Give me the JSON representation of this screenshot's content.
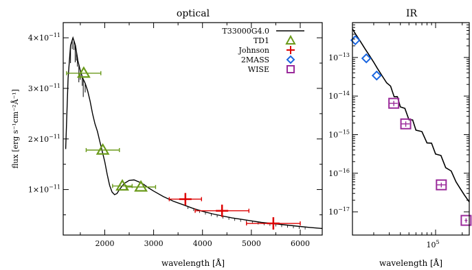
{
  "chart_data": [
    {
      "type": "scatter",
      "title": "optical",
      "xlabel": "wavelength [Å]",
      "ylabel": "flux [erg s⁻¹cm⁻²Å⁻¹]",
      "xlim": [
        1150,
        6450
      ],
      "ylim": [
        1e-12,
        4.3e-11
      ],
      "y_scale": "linear",
      "grid": false,
      "legend_position": "top-right",
      "x_ticks": [
        2000,
        3000,
        4000,
        5000,
        6000
      ],
      "x_tick_labels": [
        "2000",
        "3000",
        "4000",
        "5000",
        "6000"
      ],
      "y_ticks": [
        1e-11,
        2e-11,
        3e-11,
        4e-11
      ],
      "y_tick_labels": [
        {
          "base": "1×10",
          "exp": "−11"
        },
        {
          "base": "2×10",
          "exp": "−11"
        },
        {
          "base": "3×10",
          "exp": "−11"
        },
        {
          "base": "4×10",
          "exp": "−11"
        }
      ],
      "model": {
        "name": "T33000G4.0",
        "color": "#000000",
        "x": [
          1200,
          1250,
          1300,
          1350,
          1400,
          1450,
          1500,
          1550,
          1600,
          1650,
          1700,
          1750,
          1800,
          1850,
          1900,
          1950,
          2000,
          2050,
          2100,
          2150,
          2200,
          2250,
          2300,
          2400,
          2500,
          2600,
          2700,
          2800,
          2900,
          3000,
          3200,
          3400,
          3600,
          3800,
          4000,
          4200,
          4400,
          4600,
          4800,
          5000,
          5200,
          5400,
          5600,
          5800,
          6000,
          6200,
          6450
        ],
        "y": [
          1.8e-11,
          3.2e-11,
          3.85e-11,
          4e-11,
          3.85e-11,
          3.55e-11,
          3.35e-11,
          3.2e-11,
          3.1e-11,
          2.95e-11,
          2.75e-11,
          2.5e-11,
          2.3e-11,
          2.15e-11,
          1.95e-11,
          1.75e-11,
          1.55e-11,
          1.3e-11,
          1.08e-11,
          9.5e-12,
          9e-12,
          9.2e-12,
          1e-11,
          1.12e-11,
          1.18e-11,
          1.19e-11,
          1.15e-11,
          1.1e-11,
          1.03e-11,
          9.7e-12,
          8.6e-12,
          7.7e-12,
          7e-12,
          6.3e-12,
          5.7e-12,
          5.2e-12,
          4.8e-12,
          4.4e-12,
          4.1e-12,
          3.8e-12,
          3.5e-12,
          3.3e-12,
          3.1e-12,
          2.9e-12,
          2.7e-12,
          2.5e-12,
          2.3e-12
        ]
      },
      "series": [
        {
          "name": "TD1",
          "marker": "triangle",
          "color": "#6a9a1a",
          "points": [
            {
              "x": 1570,
              "y": 3.3e-11,
              "xerr": 350
            },
            {
              "x": 1960,
              "y": 1.78e-11,
              "xerr": 340
            },
            {
              "x": 2360,
              "y": 1.07e-11,
              "xerr": 200
            },
            {
              "x": 2740,
              "y": 1.05e-11,
              "xerr": 300
            }
          ]
        },
        {
          "name": "Johnson",
          "marker": "plus",
          "color": "#dd0000",
          "points": [
            {
              "x": 3650,
              "y": 8.1e-12,
              "xerr": 330,
              "yerr": 6e-13
            },
            {
              "x": 4400,
              "y": 5.8e-12,
              "xerr": 550,
              "yerr": 7e-13
            },
            {
              "x": 5450,
              "y": 3.3e-12,
              "xerr": 550,
              "yerr": 5e-13
            }
          ]
        }
      ]
    },
    {
      "type": "scatter",
      "title": "IR",
      "xlabel": "wavelength [Å]",
      "ylabel": "",
      "xlim": [
        11500,
        240000
      ],
      "ylim": [
        2.5e-18,
        8e-13
      ],
      "x_scale": "log",
      "y_scale": "log",
      "grid": false,
      "x_ticks": [
        100000
      ],
      "x_tick_labels": [
        {
          "base": "10",
          "exp": "5"
        }
      ],
      "y_ticks": [
        1e-17,
        1e-16,
        1e-15,
        1e-14,
        1e-13
      ],
      "y_tick_labels": [
        {
          "base": "10",
          "exp": "−17"
        },
        {
          "base": "10",
          "exp": "−16"
        },
        {
          "base": "10",
          "exp": "−15"
        },
        {
          "base": "10",
          "exp": "−14"
        },
        {
          "base": "10",
          "exp": "−13"
        }
      ],
      "model": {
        "name": "T33000G4.0",
        "color": "#000000",
        "x": [
          11500,
          12500,
          14000,
          16000,
          18000,
          20000,
          22000,
          25000,
          28000,
          31000,
          34000,
          37000,
          40000,
          45000,
          50000,
          55000,
          60000,
          70000,
          80000,
          90000,
          100000,
          115000,
          130000,
          150000,
          170000,
          190000,
          210000,
          240000
        ],
        "y": [
          5.5e-13,
          4e-13,
          2.7e-13,
          1.65e-13,
          1.1e-13,
          7.5e-14,
          5.2e-14,
          3.3e-14,
          2.2e-14,
          1.5e-14,
          1.1e-14,
          8e-15,
          6e-15,
          4e-15,
          2.8e-15,
          2e-15,
          1.5e-15,
          1e-15,
          7e-16,
          5e-16,
          3.6e-16,
          2.4e-16,
          1.6e-16,
          9.5e-17,
          6e-17,
          4e-17,
          2.8e-17,
          1.8e-17
        ]
      },
      "series": [
        {
          "name": "2MASS",
          "marker": "diamond",
          "color": "#1a66e0",
          "points": [
            {
              "x": 12400,
              "y": 2.8e-13
            },
            {
              "x": 16500,
              "y": 9.5e-14
            },
            {
              "x": 21600,
              "y": 3.4e-14
            }
          ]
        },
        {
          "name": "WISE",
          "marker": "square",
          "color": "#9a2a9a",
          "points": [
            {
              "x": 33700,
              "y": 6.5e-15,
              "xerr": 3500,
              "yerr": 1e-15
            },
            {
              "x": 46000,
              "y": 1.9e-15,
              "xerr": 5000,
              "yerr": 3e-16
            },
            {
              "x": 116000,
              "y": 5e-17,
              "xerr": 15000,
              "yerr": 7e-18
            },
            {
              "x": 221000,
              "y": 6e-18,
              "xerr": 8000,
              "yerr": 8e-19
            }
          ]
        }
      ]
    }
  ]
}
